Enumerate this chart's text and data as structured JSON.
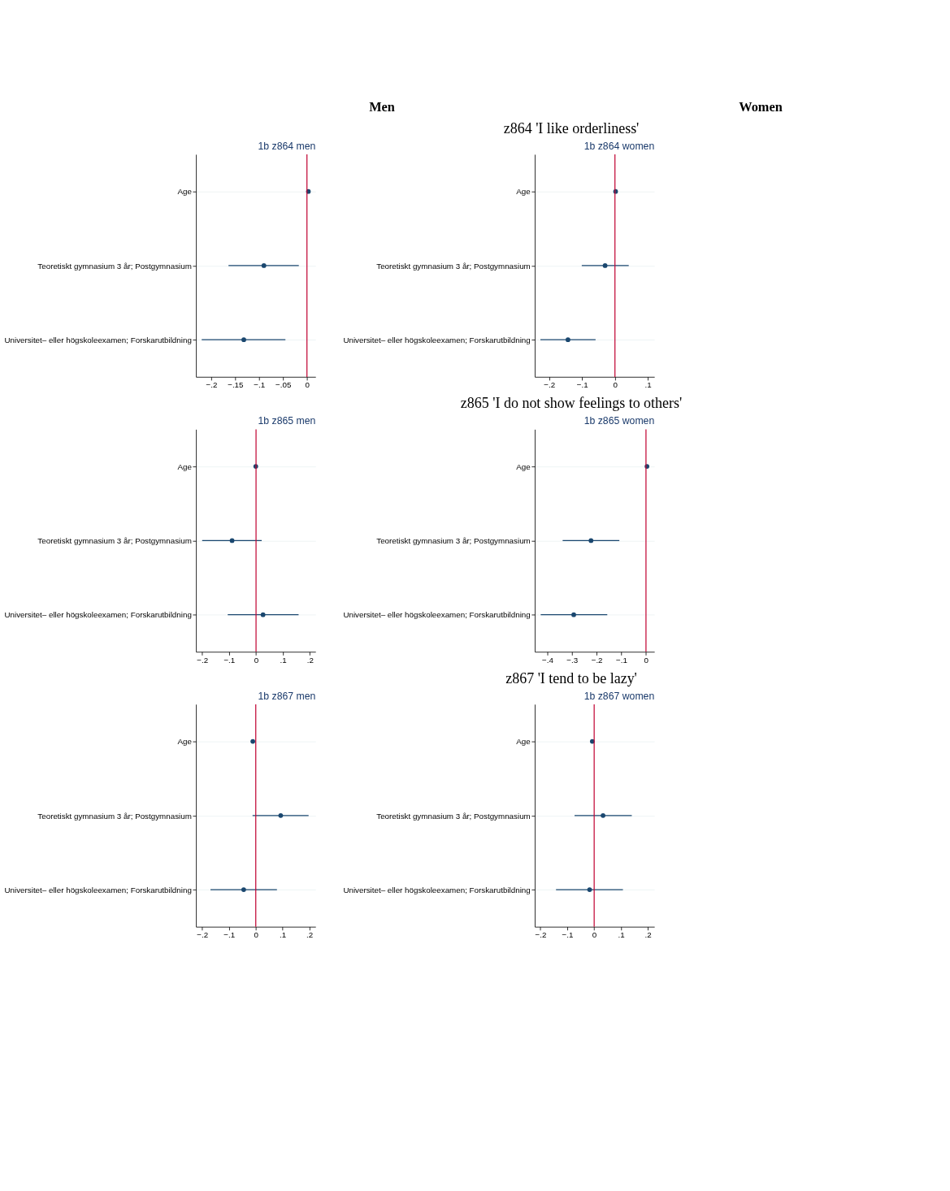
{
  "chart_data": [
    {
      "type": "scatter",
      "title": "1b z864 men",
      "orientation": "horizontal",
      "categories": [
        "Age",
        "Teoretiskt gymnasium 3 år; Postgymnasium",
        "Universitet– eller högskoleexamen; Forskarutbildning"
      ],
      "series": [
        {
          "color": "#1a476f",
          "values": [
            0.003,
            -0.09,
            -0.132
          ],
          "errors": [
            null,
            [
              -0.164,
              -0.017
            ],
            [
              -0.22,
              -0.045
            ]
          ]
        }
      ],
      "xlim": [
        -0.232,
        0.018
      ],
      "xticks": [
        {
          "value": -0.2,
          "label": "−.2"
        },
        {
          "value": -0.15,
          "label": "−.15"
        },
        {
          "value": -0.1,
          "label": "−.1"
        },
        {
          "value": -0.05,
          "label": "−.05"
        },
        {
          "value": 0,
          "label": "0"
        }
      ],
      "ref_lines": [
        {
          "axis": "x",
          "value": 0,
          "color": "#c10534"
        }
      ],
      "grid": "y",
      "marker": "circle",
      "annotations": [
        "Men",
        "z864 'I like orderliness'"
      ]
    },
    {
      "type": "scatter",
      "title": "1b z864 women",
      "orientation": "horizontal",
      "categories": [
        "Age",
        "Teoretiskt gymnasium 3 år; Postgymnasium",
        "Universitet– eller högskoleexamen; Forskarutbildning"
      ],
      "series": [
        {
          "color": "#1a476f",
          "values": [
            0.002,
            -0.03,
            -0.143
          ],
          "errors": [
            null,
            [
              -0.101,
              0.042
            ],
            [
              -0.227,
              -0.059
            ]
          ]
        }
      ],
      "xlim": [
        -0.244,
        0.12
      ],
      "xticks": [
        {
          "value": -0.2,
          "label": "−.2"
        },
        {
          "value": -0.1,
          "label": "−.1"
        },
        {
          "value": 0,
          "label": "0"
        },
        {
          "value": 0.1,
          "label": ".1"
        }
      ],
      "ref_lines": [
        {
          "axis": "x",
          "value": 0,
          "color": "#c10534"
        }
      ],
      "grid": "y",
      "marker": "circle",
      "annotations": [
        "Women"
      ]
    },
    {
      "type": "scatter",
      "title": "1b z865 men",
      "orientation": "horizontal",
      "categories": [
        "Age",
        "Teoretiskt gymnasium 3 år; Postgymnasium",
        "Universitet– eller högskoleexamen; Forskarutbildning"
      ],
      "series": [
        {
          "color": "#1a476f",
          "values": [
            -0.001,
            -0.089,
            0.026
          ],
          "errors": [
            null,
            [
              -0.2,
              0.021
            ],
            [
              -0.105,
              0.158
            ]
          ]
        }
      ],
      "xlim": [
        -0.223,
        0.221
      ],
      "xticks": [
        {
          "value": -0.2,
          "label": "−.2"
        },
        {
          "value": -0.1,
          "label": "−.1"
        },
        {
          "value": 0,
          "label": "0"
        },
        {
          "value": 0.1,
          "label": ".1"
        },
        {
          "value": 0.2,
          "label": ".2"
        }
      ],
      "ref_lines": [
        {
          "axis": "x",
          "value": 0,
          "color": "#c10534"
        }
      ],
      "grid": "y",
      "marker": "circle",
      "annotations": [
        "z865 'I do not show feelings to others'"
      ]
    },
    {
      "type": "scatter",
      "title": "1b z865 women",
      "orientation": "horizontal",
      "categories": [
        "Age",
        "Teoretiskt gymnasium 3 år; Postgymnasium",
        "Universitet– eller högskoleexamen; Forskarutbildning"
      ],
      "series": [
        {
          "color": "#1a476f",
          "values": [
            0.004,
            -0.223,
            -0.293
          ],
          "errors": [
            null,
            [
              -0.338,
              -0.108
            ],
            [
              -0.427,
              -0.157
            ]
          ]
        }
      ],
      "xlim": [
        -0.451,
        0.034
      ],
      "xticks": [
        {
          "value": -0.4,
          "label": "−.4"
        },
        {
          "value": -0.3,
          "label": "−.3"
        },
        {
          "value": -0.2,
          "label": "−.2"
        },
        {
          "value": -0.1,
          "label": "−.1"
        },
        {
          "value": 0,
          "label": "0"
        }
      ],
      "ref_lines": [
        {
          "axis": "x",
          "value": 0,
          "color": "#c10534"
        }
      ],
      "grid": "y",
      "marker": "circle"
    },
    {
      "type": "scatter",
      "title": "1b z867 men",
      "orientation": "horizontal",
      "categories": [
        "Age",
        "Teoretiskt gymnasium 3 år; Postgymnasium",
        "Universitet– eller högskoleexamen; Forskarutbildning"
      ],
      "series": [
        {
          "color": "#1a476f",
          "values": [
            -0.011,
            0.093,
            -0.045
          ],
          "errors": [
            null,
            [
              -0.012,
              0.197
            ],
            [
              -0.169,
              0.079
            ]
          ]
        }
      ],
      "xlim": [
        -0.223,
        0.223
      ],
      "xticks": [
        {
          "value": -0.2,
          "label": "−.2"
        },
        {
          "value": -0.1,
          "label": "−.1"
        },
        {
          "value": 0,
          "label": "0"
        },
        {
          "value": 0.1,
          "label": ".1"
        },
        {
          "value": 0.2,
          "label": ".2"
        }
      ],
      "ref_lines": [
        {
          "axis": "x",
          "value": 0,
          "color": "#c10534"
        }
      ],
      "grid": "y",
      "marker": "circle",
      "annotations": [
        "z867 'I tend to be lazy'"
      ]
    },
    {
      "type": "scatter",
      "title": "1b z867 women",
      "orientation": "horizontal",
      "categories": [
        "Age",
        "Teoretiskt gymnasium 3 år; Postgymnasium",
        "Universitet– eller högskoleexamen; Forskarutbildning"
      ],
      "series": [
        {
          "color": "#1a476f",
          "values": [
            -0.007,
            0.033,
            -0.017
          ],
          "errors": [
            null,
            [
              -0.073,
              0.14
            ],
            [
              -0.142,
              0.107
            ]
          ]
        }
      ],
      "xlim": [
        -0.221,
        0.224
      ],
      "xticks": [
        {
          "value": -0.2,
          "label": "−.2"
        },
        {
          "value": -0.1,
          "label": "−.1"
        },
        {
          "value": 0,
          "label": "0"
        },
        {
          "value": 0.1,
          "label": ".1"
        },
        {
          "value": 0.2,
          "label": ".2"
        }
      ],
      "ref_lines": [
        {
          "axis": "x",
          "value": 0,
          "color": "#c10534"
        }
      ],
      "grid": "y",
      "marker": "circle"
    }
  ]
}
